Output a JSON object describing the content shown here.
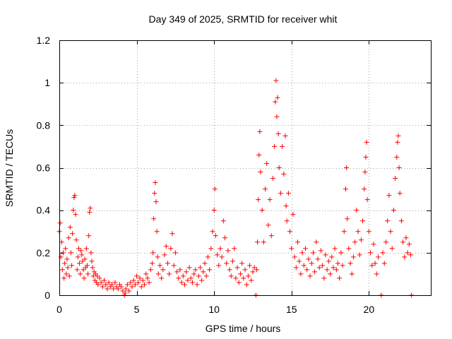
{
  "chart_data": {
    "type": "scatter",
    "title": "Day 349 of 2025, SRMTID for receiver whit",
    "xlabel": "GPS time / hours",
    "ylabel": "SRMTID / TECUs",
    "xlim": [
      0,
      24
    ],
    "ylim": [
      0,
      1.2
    ],
    "xticks": [
      0,
      5,
      10,
      15,
      20
    ],
    "xtick_labels": [
      "0",
      "5",
      "10",
      "15",
      "20"
    ],
    "yticks": [
      0,
      0.2,
      0.4,
      0.6,
      0.8,
      1.0,
      1.2
    ],
    "ytick_labels": [
      "0",
      "0.2",
      "0.4",
      "0.6",
      "0.8",
      "1",
      "1.2"
    ],
    "grid": true,
    "marker": "+",
    "color": "#ff0000",
    "series": [
      {
        "name": "SRMTID",
        "points": [
          [
            0.0,
            0.3
          ],
          [
            0.05,
            0.34
          ],
          [
            0.1,
            0.18
          ],
          [
            0.15,
            0.25
          ],
          [
            0.2,
            0.12
          ],
          [
            0.25,
            0.2
          ],
          [
            0.3,
            0.08
          ],
          [
            0.35,
            0.15
          ],
          [
            0.4,
            0.22
          ],
          [
            0.45,
            0.1
          ],
          [
            0.5,
            0.17
          ],
          [
            0.55,
            0.13
          ],
          [
            0.6,
            0.27
          ],
          [
            0.65,
            0.09
          ],
          [
            0.7,
            0.32
          ],
          [
            0.75,
            0.2
          ],
          [
            0.8,
            0.14
          ],
          [
            0.85,
            0.29
          ],
          [
            0.9,
            0.4
          ],
          [
            0.95,
            0.46
          ],
          [
            1.0,
            0.47
          ],
          [
            1.05,
            0.38
          ],
          [
            1.1,
            0.26
          ],
          [
            1.15,
            0.12
          ],
          [
            1.2,
            0.18
          ],
          [
            1.25,
            0.22
          ],
          [
            1.3,
            0.15
          ],
          [
            1.35,
            0.1
          ],
          [
            1.4,
            0.21
          ],
          [
            1.45,
            0.19
          ],
          [
            1.5,
            0.16
          ],
          [
            1.55,
            0.12
          ],
          [
            1.6,
            0.08
          ],
          [
            1.65,
            0.17
          ],
          [
            1.7,
            0.13
          ],
          [
            1.75,
            0.22
          ],
          [
            1.8,
            0.14
          ],
          [
            1.85,
            0.1
          ],
          [
            1.9,
            0.28
          ],
          [
            1.95,
            0.39
          ],
          [
            2.0,
            0.41
          ],
          [
            2.05,
            0.2
          ],
          [
            2.1,
            0.16
          ],
          [
            2.15,
            0.13
          ],
          [
            2.2,
            0.09
          ],
          [
            2.25,
            0.11
          ],
          [
            2.3,
            0.07
          ],
          [
            2.35,
            0.1
          ],
          [
            2.4,
            0.06
          ],
          [
            2.45,
            0.09
          ],
          [
            2.5,
            0.05
          ],
          [
            2.6,
            0.08
          ],
          [
            2.7,
            0.06
          ],
          [
            2.8,
            0.04
          ],
          [
            2.9,
            0.07
          ],
          [
            3.0,
            0.05
          ],
          [
            3.1,
            0.03
          ],
          [
            3.2,
            0.06
          ],
          [
            3.3,
            0.04
          ],
          [
            3.4,
            0.05
          ],
          [
            3.5,
            0.03
          ],
          [
            3.6,
            0.06
          ],
          [
            3.7,
            0.04
          ],
          [
            3.8,
            0.03
          ],
          [
            3.9,
            0.05
          ],
          [
            4.0,
            0.04
          ],
          [
            4.1,
            0.02
          ],
          [
            4.2,
            0.0
          ],
          [
            4.25,
            0.01
          ],
          [
            4.3,
            0.03
          ],
          [
            4.4,
            0.05
          ],
          [
            4.5,
            0.02
          ],
          [
            4.6,
            0.06
          ],
          [
            4.7,
            0.04
          ],
          [
            4.8,
            0.07
          ],
          [
            4.9,
            0.05
          ],
          [
            5.0,
            0.09
          ],
          [
            5.1,
            0.06
          ],
          [
            5.2,
            0.08
          ],
          [
            5.3,
            0.04
          ],
          [
            5.4,
            0.07
          ],
          [
            5.5,
            0.05
          ],
          [
            5.6,
            0.1
          ],
          [
            5.7,
            0.08
          ],
          [
            5.8,
            0.06
          ],
          [
            5.9,
            0.12
          ],
          [
            6.0,
            0.15
          ],
          [
            6.05,
            0.2
          ],
          [
            6.1,
            0.36
          ],
          [
            6.15,
            0.48
          ],
          [
            6.2,
            0.53
          ],
          [
            6.25,
            0.44
          ],
          [
            6.3,
            0.3
          ],
          [
            6.35,
            0.18
          ],
          [
            6.4,
            0.1
          ],
          [
            6.5,
            0.14
          ],
          [
            6.6,
            0.08
          ],
          [
            6.7,
            0.12
          ],
          [
            6.8,
            0.19
          ],
          [
            6.9,
            0.23
          ],
          [
            7.0,
            0.15
          ],
          [
            7.1,
            0.1
          ],
          [
            7.2,
            0.22
          ],
          [
            7.3,
            0.29
          ],
          [
            7.4,
            0.14
          ],
          [
            7.5,
            0.2
          ],
          [
            7.6,
            0.11
          ],
          [
            7.7,
            0.08
          ],
          [
            7.8,
            0.12
          ],
          [
            7.9,
            0.06
          ],
          [
            8.0,
            0.09
          ],
          [
            8.1,
            0.05
          ],
          [
            8.2,
            0.11
          ],
          [
            8.3,
            0.07
          ],
          [
            8.4,
            0.13
          ],
          [
            8.5,
            0.08
          ],
          [
            8.6,
            0.06
          ],
          [
            8.7,
            0.1
          ],
          [
            8.8,
            0.12
          ],
          [
            8.9,
            0.05
          ],
          [
            9.0,
            0.09
          ],
          [
            9.1,
            0.13
          ],
          [
            9.2,
            0.07
          ],
          [
            9.3,
            0.11
          ],
          [
            9.4,
            0.15
          ],
          [
            9.5,
            0.09
          ],
          [
            9.6,
            0.18
          ],
          [
            9.7,
            0.12
          ],
          [
            9.8,
            0.22
          ],
          [
            9.9,
            0.3
          ],
          [
            10.0,
            0.4
          ],
          [
            10.05,
            0.5
          ],
          [
            10.1,
            0.28
          ],
          [
            10.2,
            0.19
          ],
          [
            10.3,
            0.14
          ],
          [
            10.4,
            0.22
          ],
          [
            10.5,
            0.18
          ],
          [
            10.6,
            0.35
          ],
          [
            10.7,
            0.27
          ],
          [
            10.8,
            0.15
          ],
          [
            10.9,
            0.21
          ],
          [
            11.0,
            0.12
          ],
          [
            11.1,
            0.09
          ],
          [
            11.2,
            0.16
          ],
          [
            11.3,
            0.22
          ],
          [
            11.4,
            0.08
          ],
          [
            11.5,
            0.13
          ],
          [
            11.6,
            0.06
          ],
          [
            11.7,
            0.1
          ],
          [
            11.8,
            0.15
          ],
          [
            11.9,
            0.08
          ],
          [
            12.0,
            0.12
          ],
          [
            12.1,
            0.05
          ],
          [
            12.2,
            0.09
          ],
          [
            12.3,
            0.14
          ],
          [
            12.4,
            0.07
          ],
          [
            12.5,
            0.11
          ],
          [
            12.6,
            0.13
          ],
          [
            12.7,
            0.0
          ],
          [
            12.75,
            0.12
          ],
          [
            12.8,
            0.25
          ],
          [
            12.85,
            0.45
          ],
          [
            12.9,
            0.66
          ],
          [
            12.95,
            0.77
          ],
          [
            13.0,
            0.58
          ],
          [
            13.1,
            0.4
          ],
          [
            13.2,
            0.25
          ],
          [
            13.3,
            0.5
          ],
          [
            13.4,
            0.62
          ],
          [
            13.5,
            0.33
          ],
          [
            13.6,
            0.45
          ],
          [
            13.7,
            0.28
          ],
          [
            13.8,
            0.55
          ],
          [
            13.9,
            0.7
          ],
          [
            13.95,
            0.91
          ],
          [
            14.0,
            1.01
          ],
          [
            14.05,
            0.84
          ],
          [
            14.1,
            0.93
          ],
          [
            14.15,
            0.76
          ],
          [
            14.2,
            0.6
          ],
          [
            14.3,
            0.48
          ],
          [
            14.4,
            0.7
          ],
          [
            14.5,
            0.57
          ],
          [
            14.6,
            0.75
          ],
          [
            14.65,
            0.42
          ],
          [
            14.7,
            0.35
          ],
          [
            14.8,
            0.48
          ],
          [
            14.9,
            0.3
          ],
          [
            15.0,
            0.22
          ],
          [
            15.1,
            0.38
          ],
          [
            15.2,
            0.18
          ],
          [
            15.3,
            0.13
          ],
          [
            15.4,
            0.25
          ],
          [
            15.5,
            0.16
          ],
          [
            15.6,
            0.1
          ],
          [
            15.7,
            0.2
          ],
          [
            15.8,
            0.14
          ],
          [
            15.9,
            0.22
          ],
          [
            16.0,
            0.12
          ],
          [
            16.1,
            0.17
          ],
          [
            16.2,
            0.09
          ],
          [
            16.3,
            0.15
          ],
          [
            16.4,
            0.2
          ],
          [
            16.5,
            0.11
          ],
          [
            16.6,
            0.25
          ],
          [
            16.7,
            0.17
          ],
          [
            16.8,
            0.13
          ],
          [
            16.9,
            0.21
          ],
          [
            17.0,
            0.14
          ],
          [
            17.1,
            0.08
          ],
          [
            17.2,
            0.19
          ],
          [
            17.3,
            0.12
          ],
          [
            17.4,
            0.16
          ],
          [
            17.5,
            0.1
          ],
          [
            17.6,
            0.18
          ],
          [
            17.7,
            0.13
          ],
          [
            17.8,
            0.22
          ],
          [
            17.9,
            0.12
          ],
          [
            18.0,
            0.15
          ],
          [
            18.1,
            0.08
          ],
          [
            18.2,
            0.2
          ],
          [
            18.3,
            0.14
          ],
          [
            18.4,
            0.3
          ],
          [
            18.5,
            0.5
          ],
          [
            18.55,
            0.6
          ],
          [
            18.6,
            0.36
          ],
          [
            18.7,
            0.22
          ],
          [
            18.8,
            0.15
          ],
          [
            18.9,
            0.1
          ],
          [
            19.0,
            0.18
          ],
          [
            19.1,
            0.25
          ],
          [
            19.2,
            0.4
          ],
          [
            19.3,
            0.3
          ],
          [
            19.4,
            0.19
          ],
          [
            19.5,
            0.26
          ],
          [
            19.6,
            0.35
          ],
          [
            19.7,
            0.5
          ],
          [
            19.75,
            0.58
          ],
          [
            19.8,
            0.65
          ],
          [
            19.85,
            0.72
          ],
          [
            19.9,
            0.45
          ],
          [
            20.0,
            0.3
          ],
          [
            20.1,
            0.2
          ],
          [
            20.2,
            0.14
          ],
          [
            20.3,
            0.24
          ],
          [
            20.4,
            0.15
          ],
          [
            20.5,
            0.1
          ],
          [
            20.6,
            0.18
          ],
          [
            20.8,
            0.0
          ],
          [
            20.9,
            0.2
          ],
          [
            21.0,
            0.15
          ],
          [
            21.1,
            0.25
          ],
          [
            21.2,
            0.35
          ],
          [
            21.3,
            0.47
          ],
          [
            21.4,
            0.3
          ],
          [
            21.5,
            0.22
          ],
          [
            21.6,
            0.4
          ],
          [
            21.7,
            0.55
          ],
          [
            21.8,
            0.65
          ],
          [
            21.85,
            0.72
          ],
          [
            21.9,
            0.75
          ],
          [
            21.95,
            0.6
          ],
          [
            22.0,
            0.48
          ],
          [
            22.1,
            0.35
          ],
          [
            22.2,
            0.25
          ],
          [
            22.3,
            0.18
          ],
          [
            22.4,
            0.27
          ],
          [
            22.5,
            0.2
          ],
          [
            22.6,
            0.24
          ],
          [
            22.7,
            0.19
          ],
          [
            22.75,
            0.0
          ]
        ]
      }
    ]
  }
}
